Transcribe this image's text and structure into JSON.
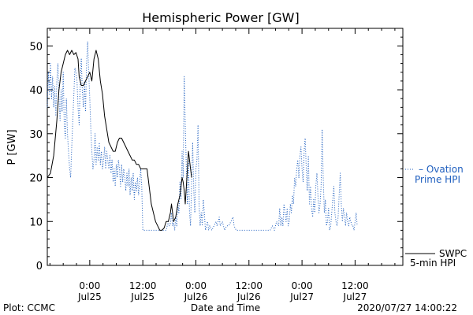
{
  "chart_data": {
    "type": "line",
    "title": "Hemispheric Power [GW]",
    "xlabel": "Date and Time",
    "ylabel": "P [GW]",
    "xlim": [
      -0.4,
      2.95
    ],
    "ylim": [
      0,
      54
    ],
    "x_unit": "days (Jul25 00:00 = 0)",
    "yticks": [
      0,
      10,
      20,
      30,
      40,
      50
    ],
    "xticks": [
      {
        "x": 0.0,
        "line1": "0:00",
        "line2": "Jul25"
      },
      {
        "x": 0.5,
        "line1": "12:00",
        "line2": "Jul25"
      },
      {
        "x": 1.0,
        "line1": "0:00",
        "line2": "Jul26"
      },
      {
        "x": 1.5,
        "line1": "12:00",
        "line2": "Jul26"
      },
      {
        "x": 2.0,
        "line1": "0:00",
        "line2": "Jul27"
      },
      {
        "x": 2.5,
        "line1": "12:00",
        "line2": "Jul27"
      }
    ],
    "series": [
      {
        "name": "SWPC 5-min HPI",
        "style": "solid",
        "color": "#000000",
        "points": [
          [
            -0.4,
            20
          ],
          [
            -0.37,
            21
          ],
          [
            -0.34,
            25
          ],
          [
            -0.31,
            33
          ],
          [
            -0.29,
            40
          ],
          [
            -0.27,
            44
          ],
          [
            -0.25,
            46
          ],
          [
            -0.23,
            48
          ],
          [
            -0.21,
            49
          ],
          [
            -0.19,
            48
          ],
          [
            -0.17,
            49
          ],
          [
            -0.15,
            48
          ],
          [
            -0.13,
            48.5
          ],
          [
            -0.11,
            47
          ],
          [
            -0.1,
            43
          ],
          [
            -0.08,
            41
          ],
          [
            -0.06,
            41
          ],
          [
            -0.04,
            42
          ],
          [
            -0.02,
            43
          ],
          [
            0.0,
            44
          ],
          [
            0.02,
            42
          ],
          [
            0.04,
            47
          ],
          [
            0.06,
            49
          ],
          [
            0.08,
            47
          ],
          [
            0.1,
            42
          ],
          [
            0.12,
            39
          ],
          [
            0.14,
            34
          ],
          [
            0.16,
            31
          ],
          [
            0.18,
            28
          ],
          [
            0.2,
            27
          ],
          [
            0.22,
            26
          ],
          [
            0.24,
            26
          ],
          [
            0.26,
            28
          ],
          [
            0.28,
            29
          ],
          [
            0.3,
            29
          ],
          [
            0.32,
            28
          ],
          [
            0.34,
            27
          ],
          [
            0.36,
            26
          ],
          [
            0.38,
            25
          ],
          [
            0.4,
            24
          ],
          [
            0.42,
            24
          ],
          [
            0.44,
            23
          ],
          [
            0.46,
            23
          ],
          [
            0.48,
            22
          ],
          [
            0.5,
            22
          ],
          [
            0.52,
            22
          ],
          [
            0.54,
            22
          ],
          [
            0.56,
            18
          ],
          [
            0.58,
            14
          ],
          [
            0.6,
            12
          ],
          [
            0.62,
            10
          ],
          [
            0.64,
            9
          ],
          [
            0.66,
            8
          ],
          [
            0.68,
            8
          ],
          [
            0.7,
            8.5
          ],
          [
            0.72,
            10
          ],
          [
            0.74,
            10
          ],
          [
            0.76,
            12
          ],
          [
            0.77,
            14
          ],
          [
            0.78,
            12
          ],
          [
            0.79,
            10
          ],
          [
            0.81,
            11
          ],
          [
            0.83,
            14
          ],
          [
            0.85,
            16
          ],
          [
            0.86,
            18
          ],
          [
            0.87,
            20
          ],
          [
            0.88,
            19
          ],
          [
            0.89,
            17
          ],
          [
            0.9,
            14
          ],
          [
            0.91,
            18
          ],
          [
            0.92,
            22
          ],
          [
            0.93,
            26
          ],
          [
            0.94,
            24
          ],
          [
            0.95,
            22
          ],
          [
            0.96,
            20
          ]
        ]
      },
      {
        "name": "Ovation Prime HPI",
        "style": "dotted",
        "color": "#1f5fbf",
        "points": [
          [
            -0.4,
            36
          ],
          [
            -0.39,
            44
          ],
          [
            -0.38,
            39
          ],
          [
            -0.37,
            46
          ],
          [
            -0.36,
            38
          ],
          [
            -0.35,
            43
          ],
          [
            -0.34,
            36
          ],
          [
            -0.33,
            41
          ],
          [
            -0.32,
            34
          ],
          [
            -0.31,
            42
          ],
          [
            -0.3,
            46
          ],
          [
            -0.29,
            38
          ],
          [
            -0.28,
            33
          ],
          [
            -0.27,
            40
          ],
          [
            -0.26,
            35
          ],
          [
            -0.25,
            44
          ],
          [
            -0.24,
            32
          ],
          [
            -0.23,
            29
          ],
          [
            -0.22,
            38
          ],
          [
            -0.21,
            30
          ],
          [
            -0.2,
            26
          ],
          [
            -0.19,
            22
          ],
          [
            -0.18,
            20
          ],
          [
            -0.17,
            27
          ],
          [
            -0.16,
            33
          ],
          [
            -0.15,
            39
          ],
          [
            -0.14,
            45
          ],
          [
            -0.13,
            44
          ],
          [
            -0.12,
            42
          ],
          [
            -0.11,
            36
          ],
          [
            -0.1,
            32
          ],
          [
            -0.09,
            41
          ],
          [
            -0.08,
            47
          ],
          [
            -0.07,
            40
          ],
          [
            -0.06,
            36
          ],
          [
            -0.05,
            42
          ],
          [
            -0.04,
            35
          ],
          [
            -0.03,
            46
          ],
          [
            -0.02,
            51
          ],
          [
            -0.01,
            44
          ],
          [
            0.0,
            38
          ],
          [
            0.01,
            31
          ],
          [
            0.02,
            26
          ],
          [
            0.03,
            22
          ],
          [
            0.04,
            24
          ],
          [
            0.05,
            30
          ],
          [
            0.06,
            23
          ],
          [
            0.07,
            27
          ],
          [
            0.08,
            24
          ],
          [
            0.09,
            28
          ],
          [
            0.1,
            23
          ],
          [
            0.11,
            26
          ],
          [
            0.12,
            22
          ],
          [
            0.13,
            24
          ],
          [
            0.14,
            27
          ],
          [
            0.15,
            22
          ],
          [
            0.16,
            26
          ],
          [
            0.17,
            24
          ],
          [
            0.18,
            22
          ],
          [
            0.19,
            25
          ],
          [
            0.2,
            21
          ],
          [
            0.21,
            24
          ],
          [
            0.22,
            19
          ],
          [
            0.23,
            22
          ],
          [
            0.24,
            18
          ],
          [
            0.25,
            23
          ],
          [
            0.26,
            20
          ],
          [
            0.27,
            24
          ],
          [
            0.28,
            22
          ],
          [
            0.29,
            18
          ],
          [
            0.3,
            23
          ],
          [
            0.31,
            19
          ],
          [
            0.32,
            22
          ],
          [
            0.33,
            20
          ],
          [
            0.34,
            17
          ],
          [
            0.35,
            21
          ],
          [
            0.36,
            18
          ],
          [
            0.37,
            22
          ],
          [
            0.38,
            16
          ],
          [
            0.39,
            20
          ],
          [
            0.4,
            17
          ],
          [
            0.41,
            21
          ],
          [
            0.42,
            15
          ],
          [
            0.43,
            19
          ],
          [
            0.44,
            17
          ],
          [
            0.45,
            20
          ],
          [
            0.46,
            16
          ],
          [
            0.47,
            19
          ],
          [
            0.48,
            22
          ],
          [
            0.49,
            18
          ],
          [
            0.5,
            8
          ],
          [
            0.55,
            8
          ],
          [
            0.6,
            8
          ],
          [
            0.65,
            8
          ],
          [
            0.7,
            8
          ],
          [
            0.72,
            8
          ],
          [
            0.73,
            9
          ],
          [
            0.74,
            10
          ],
          [
            0.75,
            9
          ],
          [
            0.76,
            9.5
          ],
          [
            0.77,
            12
          ],
          [
            0.78,
            9
          ],
          [
            0.79,
            10
          ],
          [
            0.8,
            8
          ],
          [
            0.81,
            11
          ],
          [
            0.82,
            9
          ],
          [
            0.83,
            14
          ],
          [
            0.84,
            12
          ],
          [
            0.85,
            19
          ],
          [
            0.86,
            15
          ],
          [
            0.87,
            26
          ],
          [
            0.88,
            20
          ],
          [
            0.89,
            43
          ],
          [
            0.9,
            32
          ],
          [
            0.91,
            22
          ],
          [
            0.92,
            14
          ],
          [
            0.93,
            24
          ],
          [
            0.94,
            12
          ],
          [
            0.95,
            9
          ],
          [
            0.96,
            19
          ],
          [
            0.97,
            28
          ],
          [
            0.98,
            17
          ],
          [
            0.99,
            12
          ],
          [
            1.0,
            22
          ],
          [
            1.01,
            24
          ],
          [
            1.02,
            32
          ],
          [
            1.03,
            14
          ],
          [
            1.04,
            9
          ],
          [
            1.05,
            12
          ],
          [
            1.06,
            9
          ],
          [
            1.07,
            15
          ],
          [
            1.08,
            12
          ],
          [
            1.09,
            8
          ],
          [
            1.1,
            9
          ],
          [
            1.11,
            10
          ],
          [
            1.12,
            8
          ],
          [
            1.13,
            9
          ],
          [
            1.15,
            8
          ],
          [
            1.17,
            9
          ],
          [
            1.19,
            10
          ],
          [
            1.2,
            9
          ],
          [
            1.22,
            11
          ],
          [
            1.23,
            9
          ],
          [
            1.25,
            10
          ],
          [
            1.27,
            8
          ],
          [
            1.29,
            9
          ],
          [
            1.31,
            9
          ],
          [
            1.33,
            10
          ],
          [
            1.35,
            11
          ],
          [
            1.36,
            9
          ],
          [
            1.38,
            8
          ],
          [
            1.4,
            8
          ],
          [
            1.5,
            8
          ],
          [
            1.6,
            8
          ],
          [
            1.7,
            8
          ],
          [
            1.72,
            9
          ],
          [
            1.74,
            8
          ],
          [
            1.76,
            10
          ],
          [
            1.78,
            9
          ],
          [
            1.79,
            13
          ],
          [
            1.8,
            9
          ],
          [
            1.81,
            11
          ],
          [
            1.82,
            9
          ],
          [
            1.83,
            14
          ],
          [
            1.84,
            12
          ],
          [
            1.85,
            10
          ],
          [
            1.86,
            13
          ],
          [
            1.87,
            9
          ],
          [
            1.88,
            10
          ],
          [
            1.89,
            14
          ],
          [
            1.9,
            12
          ],
          [
            1.91,
            16
          ],
          [
            1.92,
            14
          ],
          [
            1.93,
            20
          ],
          [
            1.94,
            18
          ],
          [
            1.95,
            22
          ],
          [
            1.96,
            24
          ],
          [
            1.97,
            20
          ],
          [
            1.98,
            25
          ],
          [
            1.99,
            27
          ],
          [
            2.0,
            22
          ],
          [
            2.01,
            19
          ],
          [
            2.02,
            26
          ],
          [
            2.03,
            29
          ],
          [
            2.04,
            22
          ],
          [
            2.05,
            17
          ],
          [
            2.06,
            25
          ],
          [
            2.07,
            14
          ],
          [
            2.08,
            18
          ],
          [
            2.09,
            13
          ],
          [
            2.1,
            11
          ],
          [
            2.11,
            15
          ],
          [
            2.12,
            12
          ],
          [
            2.13,
            18
          ],
          [
            2.14,
            21
          ],
          [
            2.15,
            16
          ],
          [
            2.16,
            12
          ],
          [
            2.17,
            14
          ],
          [
            2.18,
            18
          ],
          [
            2.19,
            31
          ],
          [
            2.2,
            20
          ],
          [
            2.21,
            12
          ],
          [
            2.22,
            15
          ],
          [
            2.23,
            9
          ],
          [
            2.24,
            10
          ],
          [
            2.25,
            13
          ],
          [
            2.26,
            8
          ],
          [
            2.27,
            9
          ],
          [
            2.28,
            12
          ],
          [
            2.29,
            15
          ],
          [
            2.3,
            18
          ],
          [
            2.31,
            12
          ],
          [
            2.32,
            10
          ],
          [
            2.33,
            9
          ],
          [
            2.34,
            11
          ],
          [
            2.35,
            16
          ],
          [
            2.36,
            21
          ],
          [
            2.37,
            14
          ],
          [
            2.38,
            10
          ],
          [
            2.39,
            13
          ],
          [
            2.4,
            11
          ],
          [
            2.41,
            9
          ],
          [
            2.42,
            12
          ],
          [
            2.43,
            10
          ],
          [
            2.44,
            9
          ],
          [
            2.45,
            11
          ],
          [
            2.46,
            10
          ],
          [
            2.47,
            9
          ],
          [
            2.48,
            9
          ],
          [
            2.49,
            8
          ],
          [
            2.5,
            10
          ],
          [
            2.51,
            12
          ],
          [
            2.52,
            9
          ]
        ]
      }
    ],
    "legend": [
      {
        "label_line1": "– Ovation",
        "label_line2": "Prime HPI",
        "color": "#1f5fbf",
        "style": "dotted"
      },
      {
        "label_line1": "SWPC",
        "label_line2": "5-min HPI",
        "color": "#000000",
        "style": "solid"
      }
    ]
  },
  "footer": {
    "plot_credit": "Plot: CCMC",
    "timestamp": "2020/07/27 14:00:22"
  }
}
